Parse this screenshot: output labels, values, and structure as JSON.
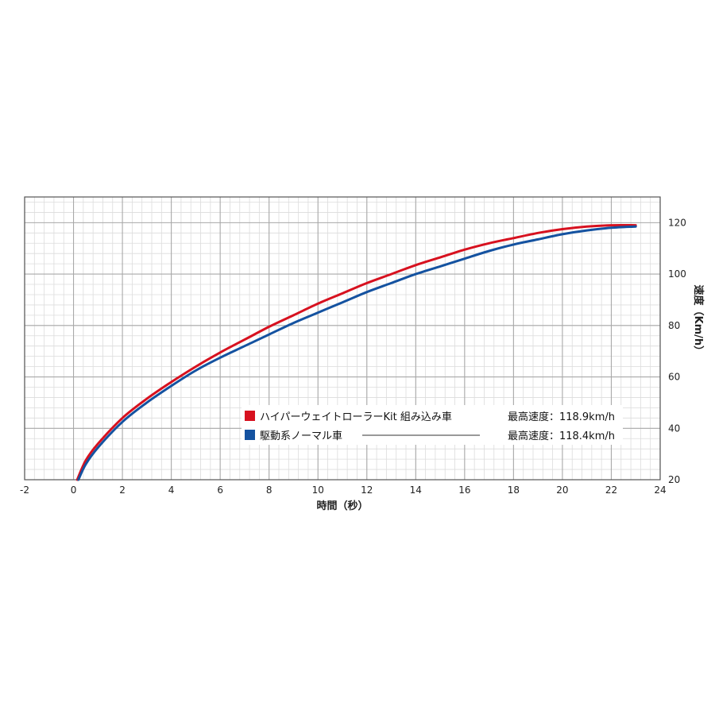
{
  "chart_data": {
    "type": "line",
    "xlabel": "時間（秒）",
    "ylabel": "速度（Km/h）",
    "xlim": [
      -2,
      24
    ],
    "ylim": [
      20,
      130
    ],
    "xticks": [
      -2,
      0,
      2,
      4,
      6,
      8,
      10,
      12,
      14,
      16,
      18,
      20,
      22,
      24
    ],
    "yticks": [
      20,
      40,
      60,
      80,
      100,
      120
    ],
    "y_axis_side": "right",
    "grid": true,
    "legend_position": "center-right",
    "series": [
      {
        "name": "ハイパーウェイトローラーKit 組み込み車",
        "note": "最高速度：118.9km/h",
        "color": "#d7111f",
        "x": [
          0.15,
          0.5,
          1,
          2,
          3,
          4,
          5,
          6,
          7,
          8,
          9,
          10,
          11,
          12,
          13,
          14,
          15,
          16,
          17,
          18,
          19,
          20,
          21,
          22,
          23
        ],
        "y": [
          20,
          27.5,
          34,
          44,
          51.5,
          58,
          64,
          69.5,
          74.5,
          79.5,
          84,
          88.5,
          92.5,
          96.5,
          100,
          103.5,
          106.5,
          109.5,
          112,
          114,
          116,
          117.5,
          118.5,
          119,
          119
        ]
      },
      {
        "name": "駆動系ノーマル車",
        "note": "最高速度：118.4km/h",
        "color": "#1452a0",
        "x": [
          0.2,
          0.5,
          1,
          2,
          3,
          4,
          5,
          6,
          7,
          8,
          9,
          10,
          11,
          12,
          13,
          14,
          15,
          16,
          17,
          18,
          19,
          20,
          21,
          22,
          23
        ],
        "y": [
          20,
          26,
          32.5,
          42.5,
          50,
          56.5,
          62.5,
          67.5,
          72,
          76.5,
          81,
          85,
          89,
          93,
          96.5,
          100,
          103,
          106,
          109,
          111.5,
          113.5,
          115.5,
          117,
          118,
          118.5
        ]
      }
    ]
  }
}
